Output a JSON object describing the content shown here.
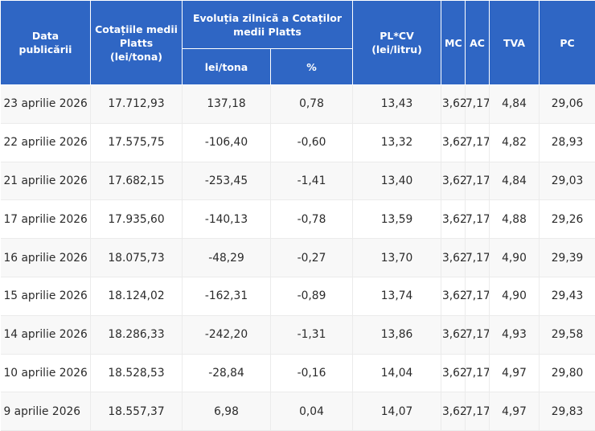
{
  "headers": {
    "date": "Data publicării",
    "platts": "Cotațiile medii Platts (lei/tona)",
    "evolution": "Evoluția zilnică a Cotaților medii Platts",
    "lei_tona": "lei/tona",
    "percent": "%",
    "pl_cv": "PL*CV (lei/litru)",
    "mc": "MC",
    "ac": "AC",
    "tva": "TVA",
    "pc": "PC"
  },
  "rows": [
    {
      "date": "23 aprilie 2026",
      "platts": "17.712,93",
      "lei": "137,18",
      "pct": "0,78",
      "plcv": "13,43",
      "mc": "3,62",
      "ac": "7,17",
      "tva": "4,84",
      "pc": "29,06"
    },
    {
      "date": "22 aprilie 2026",
      "platts": "17.575,75",
      "lei": "-106,40",
      "pct": "-0,60",
      "plcv": "13,32",
      "mc": "3,62",
      "ac": "7,17",
      "tva": "4,82",
      "pc": "28,93"
    },
    {
      "date": "21 aprilie 2026",
      "platts": "17.682,15",
      "lei": "-253,45",
      "pct": "-1,41",
      "plcv": "13,40",
      "mc": "3,62",
      "ac": "7,17",
      "tva": "4,84",
      "pc": "29,03"
    },
    {
      "date": "17 aprilie 2026",
      "platts": "17.935,60",
      "lei": "-140,13",
      "pct": "-0,78",
      "plcv": "13,59",
      "mc": "3,62",
      "ac": "7,17",
      "tva": "4,88",
      "pc": "29,26"
    },
    {
      "date": "16 aprilie 2026",
      "platts": "18.075,73",
      "lei": "-48,29",
      "pct": "-0,27",
      "plcv": "13,70",
      "mc": "3,62",
      "ac": "7,17",
      "tva": "4,90",
      "pc": "29,39"
    },
    {
      "date": "15 aprilie 2026",
      "platts": "18.124,02",
      "lei": "-162,31",
      "pct": "-0,89",
      "plcv": "13,74",
      "mc": "3,62",
      "ac": "7,17",
      "tva": "4,90",
      "pc": "29,43"
    },
    {
      "date": "14 aprilie 2026",
      "platts": "18.286,33",
      "lei": "-242,20",
      "pct": "-1,31",
      "plcv": "13,86",
      "mc": "3,62",
      "ac": "7,17",
      "tva": "4,93",
      "pc": "29,58"
    },
    {
      "date": "10 aprilie 2026",
      "platts": "18.528,53",
      "lei": "-28,84",
      "pct": "-0,16",
      "plcv": "14,04",
      "mc": "3,62",
      "ac": "7,17",
      "tva": "4,97",
      "pc": "29,80"
    },
    {
      "date": "9 aprilie 2026",
      "platts": "18.557,37",
      "lei": "6,98",
      "pct": "0,04",
      "plcv": "14,07",
      "mc": "3,62",
      "ac": "7,17",
      "tva": "4,97",
      "pc": "29,83"
    }
  ],
  "colors": {
    "header_bg": "#2f66c4",
    "header_text": "#ffffff",
    "row_alt": "#f8f8f8",
    "text": "#2b2b2b"
  }
}
